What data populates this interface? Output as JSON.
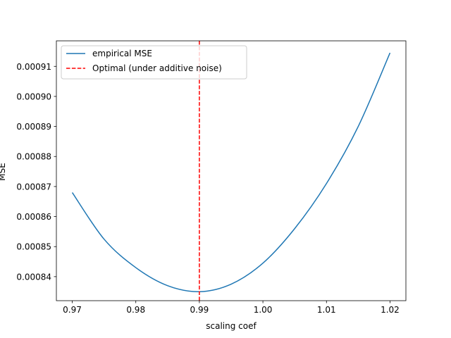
{
  "chart_data": {
    "type": "line",
    "xlabel": "scaling coef",
    "ylabel": "MSE",
    "xlim": [
      0.9675,
      1.0225
    ],
    "ylim": [
      0.000832,
      0.0009185
    ],
    "x_ticks": [
      0.97,
      0.98,
      0.99,
      1.0,
      1.01,
      1.02
    ],
    "x_tick_labels": [
      "0.97",
      "0.98",
      "0.99",
      "1.00",
      "1.01",
      "1.02"
    ],
    "y_ticks": [
      0.00084,
      0.00085,
      0.00086,
      0.00087,
      0.00088,
      0.00089,
      0.0009,
      0.00091
    ],
    "y_tick_labels": [
      "0.00084",
      "0.00085",
      "0.00086",
      "0.00087",
      "0.00088",
      "0.00089",
      "0.00090",
      "0.00091"
    ],
    "grid": false,
    "legend_position": "top-left",
    "series": [
      {
        "name": "empirical MSE",
        "color": "#1f77b4",
        "style": "solid",
        "x": [
          0.97,
          0.975,
          0.98,
          0.985,
          0.99,
          0.995,
          1.0,
          1.005,
          1.01,
          1.015,
          1.02
        ],
        "y": [
          0.000868,
          0.0008525,
          0.000843,
          0.000837,
          0.000835,
          0.0008375,
          0.0008445,
          0.000856,
          0.000871,
          0.00089,
          0.0009145
        ]
      }
    ],
    "vlines": [
      {
        "name": "Optimal (under additive noise)",
        "x": 0.99,
        "color": "#ff0000",
        "style": "dashed"
      }
    ]
  }
}
